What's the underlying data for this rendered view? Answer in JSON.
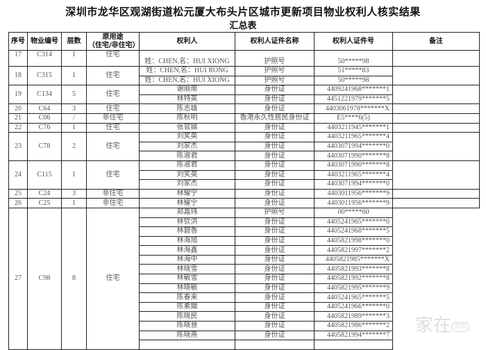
{
  "title": "深圳市龙华区观湖街道松元厦大布头片区城市更新项目物业权利人核实结果",
  "subtitle": "汇总表",
  "headers": [
    "序号",
    "物业编号",
    "层数",
    "原用途\n（住宅/非住宅）",
    "权利人",
    "权利人证件名称",
    "权利人证件号",
    "备注"
  ],
  "groups": [
    {
      "seq": "17",
      "code": "C314",
      "floors": "1",
      "usage": "住宅",
      "owners": [
        {
          "name": "姓：CHEN,名：HUI XIONG",
          "id_type": "护照号",
          "id_no": "50*****98"
        }
      ]
    },
    {
      "seq": "18",
      "code": "C315",
      "floors": "1",
      "usage": "住宅",
      "owners": [
        {
          "name": "姓：CHEN,名：HUI RONG",
          "id_type": "护照号",
          "id_no": "51*****83"
        },
        {
          "name": "姓：CHEN,名：HUI XIONG",
          "id_type": "护照号",
          "id_no": "50*****98"
        }
      ]
    },
    {
      "seq": "19",
      "code": "C134",
      "floors": "5",
      "usage": "住宅",
      "owners": [
        {
          "name": "谢顺南",
          "id_type": "身份证",
          "id_no": "4409241968*******1"
        },
        {
          "name": "林特英",
          "id_type": "身份证",
          "id_no": "4451221979*******5"
        }
      ]
    },
    {
      "seq": "20",
      "code": "C64",
      "floors": "3",
      "usage": "住宅",
      "owners": [
        {
          "name": "陈志雄",
          "id_type": "身份证",
          "id_no": "4403061978*******X"
        }
      ]
    },
    {
      "seq": "21",
      "code": "C06",
      "floors": "/",
      "usage": "非住宅",
      "owners": [
        {
          "name": "陈秋明",
          "id_type": "香港永久性居民身份证",
          "id_no": "E5****6(5)"
        }
      ]
    },
    {
      "seq": "22",
      "code": "C76",
      "floors": "1",
      "usage": "住宅",
      "owners": [
        {
          "name": "张官娣",
          "id_type": "身份证",
          "id_no": "4403211945*******1"
        }
      ]
    },
    {
      "seq": "23",
      "code": "C78",
      "floors": "2",
      "usage": "住宅",
      "owners": [
        {
          "name": "刘笑英",
          "id_type": "身份证",
          "id_no": "4403211965*******4"
        },
        {
          "name": "刘家杰",
          "id_type": "身份证",
          "id_no": "4403071994*******0"
        },
        {
          "name": "陈淑君",
          "id_type": "身份证",
          "id_no": "4403071990*******8"
        }
      ]
    },
    {
      "seq": "24",
      "code": "C115",
      "floors": "1",
      "usage": "住宅",
      "owners": [
        {
          "name": "陈淑君",
          "id_type": "身份证",
          "id_no": "4403071990*******8"
        },
        {
          "name": "刘笑英",
          "id_type": "身份证",
          "id_no": "4403211965*******4"
        },
        {
          "name": "刘家杰",
          "id_type": "身份证",
          "id_no": "4403071994*******0"
        }
      ]
    },
    {
      "seq": "25",
      "code": "C24",
      "floors": "3",
      "usage": "非住宅",
      "owners": [
        {
          "name": "林耀宁",
          "id_type": "身份证",
          "id_no": "4403011956*******9"
        }
      ]
    },
    {
      "seq": "26",
      "code": "C25",
      "floors": "1",
      "usage": "非住宅",
      "owners": [
        {
          "name": "林耀宁",
          "id_type": "身份证",
          "id_no": "4403011956*******9"
        }
      ]
    },
    {
      "seq": "27",
      "code": "C98",
      "floors": "8",
      "usage": "住宅",
      "owners": [
        {
          "name": "郑嘉玮",
          "id_type": "护照号",
          "id_no": "00*****60"
        },
        {
          "name": "林钦洪",
          "id_type": "身份证",
          "id_no": "4405241965*******0"
        },
        {
          "name": "林碧香",
          "id_type": "身份证",
          "id_no": "4405241968*******5"
        },
        {
          "name": "林海旭",
          "id_type": "身份证",
          "id_no": "4405821998*******0"
        },
        {
          "name": "林海鑫",
          "id_type": "身份证",
          "id_no": "4405821997*******2"
        },
        {
          "name": "林海中",
          "id_type": "身份证",
          "id_no": "4405821985*******X"
        },
        {
          "name": "林晓雪",
          "id_type": "身份证",
          "id_no": "4405821993*******8"
        },
        {
          "name": "林敏雪",
          "id_type": "身份证",
          "id_no": "4405821992*******8"
        },
        {
          "name": "林晓敏",
          "id_type": "身份证",
          "id_no": "4405821995*******9"
        },
        {
          "name": "陈春来",
          "id_type": "身份证",
          "id_no": "4405241965*******5"
        },
        {
          "name": "陈素娥",
          "id_type": "身份证",
          "id_no": "4405241966*******0"
        },
        {
          "name": "陈晓民",
          "id_type": "身份证",
          "id_no": "4405821989*******3"
        },
        {
          "name": "陈晓慧",
          "id_type": "身份证",
          "id_no": "4405821986*******2"
        },
        {
          "name": "陈晓燕",
          "id_type": "身份证",
          "id_no": "4405821994*******7"
        },
        {
          "name": "",
          "id_type": "",
          "id_no": ""
        }
      ]
    }
  ],
  "watermark": {
    "main": "家在",
    "badge": "深圳"
  }
}
